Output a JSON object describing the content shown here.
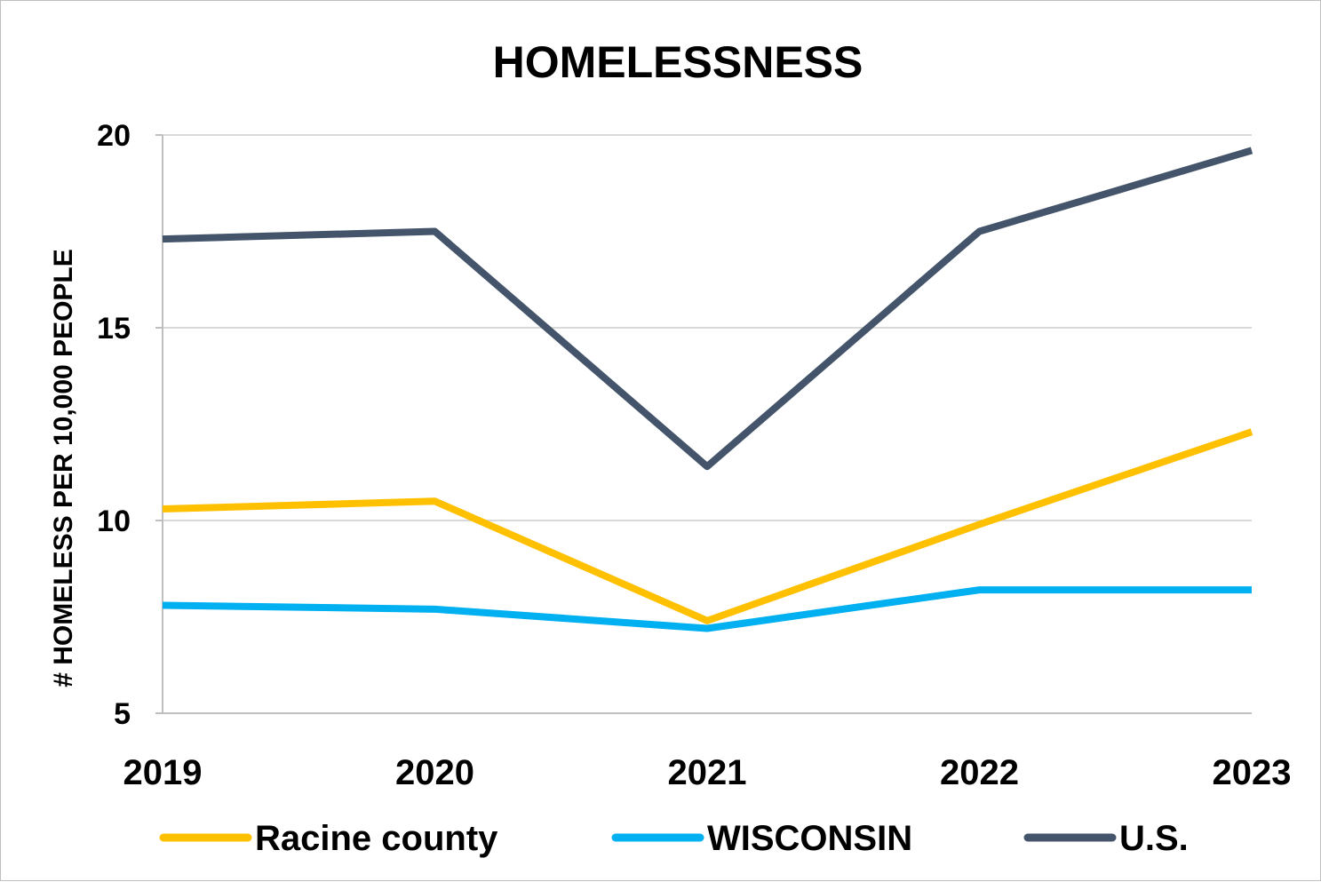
{
  "chart_data": {
    "type": "line",
    "title": "HOMELESSNESS",
    "ylabel": "# HOMELESS PER 10,000 PEOPLE",
    "xlabel": "",
    "categories": [
      "2019",
      "2020",
      "2021",
      "2022",
      "2023"
    ],
    "ylim": [
      5,
      20
    ],
    "yticks": [
      "5",
      "10",
      "15",
      "20"
    ],
    "grid": true,
    "legend_position": "bottom",
    "series": [
      {
        "name": "Racine county",
        "color": "#FFC000",
        "values": [
          10.3,
          10.5,
          7.4,
          9.9,
          12.3
        ]
      },
      {
        "name": "WISCONSIN",
        "color": "#00B0F0",
        "values": [
          7.8,
          7.7,
          7.2,
          8.2,
          8.2
        ]
      },
      {
        "name": "U.S.",
        "color": "#44546A",
        "values": [
          17.3,
          17.5,
          11.4,
          17.5,
          19.6
        ]
      }
    ]
  }
}
